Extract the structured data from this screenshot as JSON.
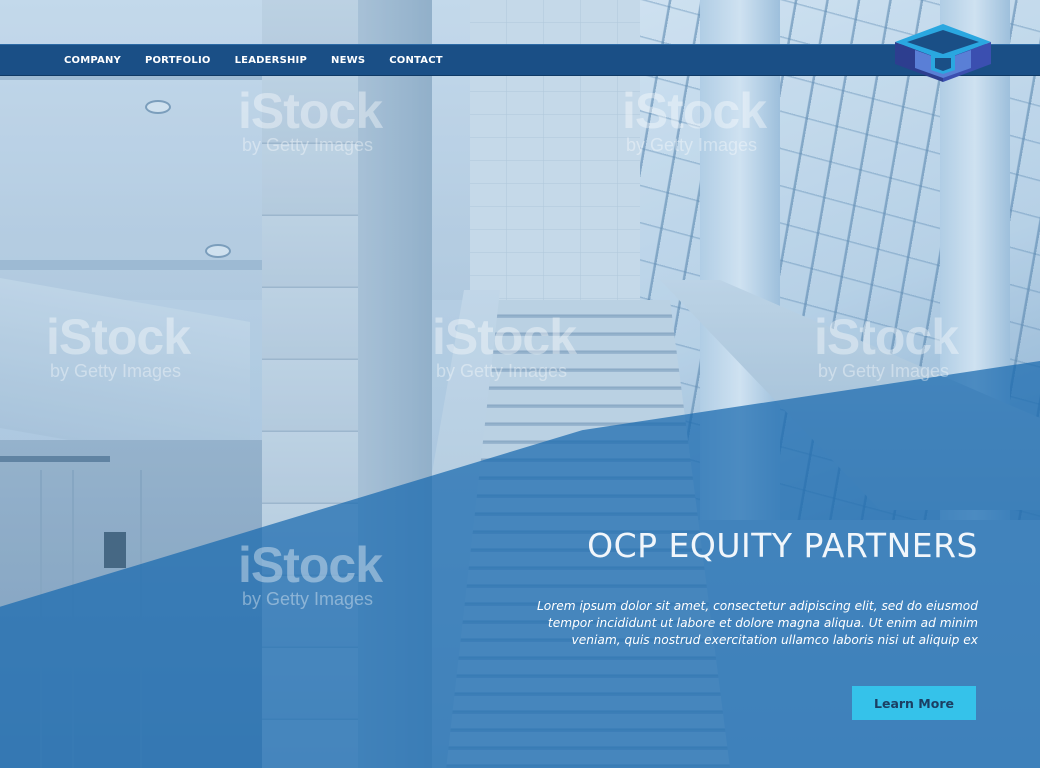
{
  "nav": {
    "items": [
      {
        "label": "COMPANY"
      },
      {
        "label": "PORTFOLIO"
      },
      {
        "label": "LEADERSHIP"
      },
      {
        "label": "NEWS"
      },
      {
        "label": "CONTACT"
      }
    ]
  },
  "logo": {
    "icon": "cube-logo-icon"
  },
  "hero": {
    "title": "OCP EQUITY PARTNERS",
    "body": "Lorem ipsum dolor sit amet, consectetur adipiscing elit, sed do eiusmod tempor incididunt ut labore et dolore magna aliqua. Ut enim ad minim veniam, quis nostrud exercitation ullamco laboris nisi ut aliquip ex",
    "cta_label": "Learn More"
  },
  "watermark": {
    "brand": "iStock",
    "tagline": "by Getty Images"
  },
  "colors": {
    "navbar": "#1a4f86",
    "overlay": "#1969af",
    "cta_background": "#35c2ea",
    "cta_text": "#1b3f63",
    "logo_dark": "#2d3e8f",
    "logo_light": "#5a7fd6",
    "logo_accent": "#2aa7e0"
  }
}
